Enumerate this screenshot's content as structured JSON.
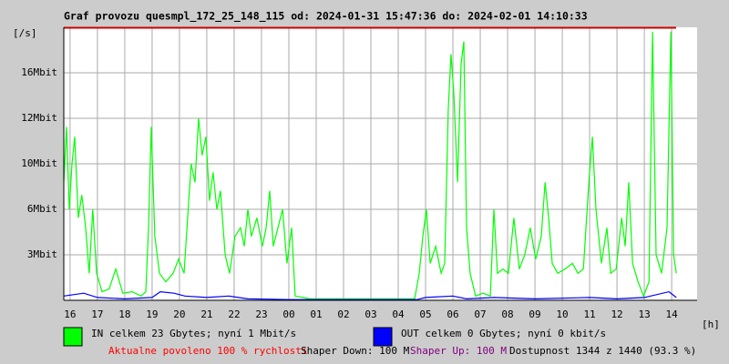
{
  "chart_data": {
    "type": "line",
    "title": "Graf provozu quesmpl_172_25_148_115 od: 2024-01-31 15:47:36 do: 2024-02-01 14:10:33",
    "y_label": "[/s]",
    "x_label": "[h]",
    "xlim": [
      15.77,
      38.93
    ],
    "ylim": [
      0,
      19.2
    ],
    "grid": true,
    "xticks": [
      {
        "value": 16,
        "label": "16"
      },
      {
        "value": 17,
        "label": "17"
      },
      {
        "value": 18,
        "label": "18"
      },
      {
        "value": 19,
        "label": "19"
      },
      {
        "value": 20,
        "label": "20"
      },
      {
        "value": 21,
        "label": "21"
      },
      {
        "value": 22,
        "label": "22"
      },
      {
        "value": 23,
        "label": "23"
      },
      {
        "value": 24,
        "label": "00"
      },
      {
        "value": 25,
        "label": "01"
      },
      {
        "value": 26,
        "label": "02"
      },
      {
        "value": 27,
        "label": "03"
      },
      {
        "value": 28,
        "label": "04"
      },
      {
        "value": 29,
        "label": "05"
      },
      {
        "value": 30,
        "label": "06"
      },
      {
        "value": 31,
        "label": "07"
      },
      {
        "value": 32,
        "label": "08"
      },
      {
        "value": 33,
        "label": "09"
      },
      {
        "value": 34,
        "label": "10"
      },
      {
        "value": 35,
        "label": "11"
      },
      {
        "value": 36,
        "label": "12"
      },
      {
        "value": 37,
        "label": "13"
      },
      {
        "value": 38,
        "label": "14"
      }
    ],
    "yticks": [
      {
        "value": 3.2,
        "label": "3Mbit"
      },
      {
        "value": 6.4,
        "label": "6Mbit"
      },
      {
        "value": 9.6,
        "label": "10Mbit"
      },
      {
        "value": 12.8,
        "label": "12Mbit"
      },
      {
        "value": 16,
        "label": "16Mbit"
      }
    ],
    "series": [
      {
        "name": "IN celkem 23 Gbytes; nyní 1 Mbit/s",
        "color": "#00ff00",
        "x": [
          15.77,
          15.87,
          15.97,
          16.07,
          16.17,
          16.3,
          16.43,
          16.57,
          16.7,
          16.83,
          16.97,
          17.17,
          17.43,
          17.67,
          17.93,
          18.27,
          18.6,
          18.77,
          18.87,
          18.97,
          19.1,
          19.27,
          19.5,
          19.77,
          19.97,
          20.17,
          20.3,
          20.43,
          20.57,
          20.7,
          20.83,
          20.97,
          21.1,
          21.23,
          21.37,
          21.5,
          21.67,
          21.83,
          22.03,
          22.23,
          22.37,
          22.5,
          22.63,
          22.83,
          23.03,
          23.17,
          23.3,
          23.43,
          23.6,
          23.77,
          23.93,
          24.1,
          24.23,
          24.77,
          26.1,
          27.43,
          28.6,
          28.77,
          28.9,
          29.03,
          29.17,
          29.37,
          29.57,
          29.7,
          29.83,
          29.93,
          30.03,
          30.17,
          30.3,
          30.4,
          30.5,
          30.63,
          30.83,
          31.1,
          31.37,
          31.5,
          31.63,
          31.83,
          32.03,
          32.23,
          32.43,
          32.63,
          32.83,
          33.03,
          33.23,
          33.37,
          33.5,
          33.63,
          33.83,
          34.1,
          34.37,
          34.57,
          34.77,
          34.97,
          35.1,
          35.23,
          35.43,
          35.63,
          35.77,
          35.97,
          36.17,
          36.3,
          36.43,
          36.57,
          36.77,
          36.97,
          37.17,
          37.3,
          37.43,
          37.63,
          37.83,
          37.97,
          38.07,
          38.17
        ],
        "values": [
          8.3,
          12.2,
          6.4,
          9.6,
          11.5,
          5.8,
          7.4,
          5.1,
          1.9,
          6.4,
          1.9,
          0.6,
          0.8,
          2.2,
          0.5,
          0.6,
          0.3,
          0.6,
          5.1,
          12.2,
          4.5,
          1.9,
          1.3,
          1.9,
          2.9,
          1.9,
          5.8,
          9.6,
          8.3,
          12.8,
          10.2,
          11.5,
          7.0,
          9.0,
          6.4,
          7.7,
          3.2,
          1.9,
          4.5,
          5.1,
          3.8,
          6.4,
          4.5,
          5.8,
          3.8,
          5.1,
          7.7,
          3.8,
          5.1,
          6.4,
          2.6,
          5.1,
          0.3,
          0.1,
          0.1,
          0.1,
          0.1,
          1.9,
          4.5,
          6.4,
          2.6,
          3.8,
          1.9,
          2.6,
          13.4,
          17.3,
          14.7,
          8.3,
          16.6,
          18.2,
          5.1,
          1.9,
          0.3,
          0.5,
          0.3,
          6.4,
          1.9,
          2.2,
          1.9,
          5.8,
          2.2,
          3.2,
          5.1,
          2.9,
          4.5,
          8.3,
          5.8,
          2.6,
          1.9,
          2.2,
          2.6,
          1.9,
          2.2,
          8.3,
          11.5,
          6.4,
          2.6,
          5.1,
          1.9,
          2.2,
          5.8,
          3.8,
          8.3,
          2.6,
          1.3,
          0.3,
          1.3,
          18.9,
          3.2,
          1.9,
          5.1,
          18.9,
          3.2,
          1.9
        ]
      },
      {
        "name": "OUT celkem 0 Gbytes; nyní 0 kbit/s",
        "color": "#0000ff",
        "x": [
          15.77,
          16.5,
          17,
          18,
          19,
          19.3,
          19.8,
          20.2,
          21,
          21.8,
          22.5,
          24,
          28.7,
          29,
          30,
          30.5,
          31.5,
          33,
          35,
          36,
          37,
          37.9,
          38.17
        ],
        "values": [
          0.3,
          0.5,
          0.2,
          0.1,
          0.2,
          0.6,
          0.5,
          0.3,
          0.2,
          0.3,
          0.1,
          0.05,
          0.05,
          0.2,
          0.3,
          0.1,
          0.2,
          0.1,
          0.2,
          0.1,
          0.2,
          0.6,
          0.2
        ]
      }
    ],
    "footer": {
      "speed": "Aktualne povoleno 100 % rychlosti",
      "shaper_down": "Shaper Down: 100 M",
      "shaper_up": "Shaper Up: 100 M",
      "availability": "Dostupnost 1344 z 1440 (93.3 %)"
    }
  }
}
